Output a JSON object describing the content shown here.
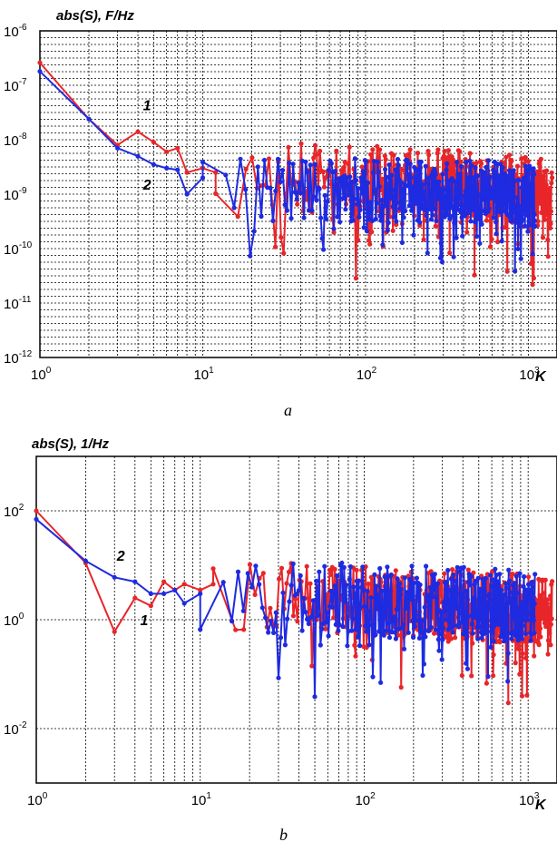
{
  "chart_data": [
    {
      "type": "line",
      "panel_label": "a",
      "ylabel": "abs(S), F/Hz",
      "xlabel": "K",
      "xscale": "log",
      "yscale": "log",
      "xlim": [
        1,
        1500
      ],
      "ylim": [
        1e-12,
        1e-06
      ],
      "grid": true,
      "x_ticks": [
        {
          "base": "10",
          "exp": "0"
        },
        {
          "base": "10",
          "exp": "1"
        },
        {
          "base": "10",
          "exp": "2"
        },
        {
          "base": "10",
          "exp": "3"
        }
      ],
      "y_ticks": [
        {
          "base": "10",
          "exp": "-6"
        },
        {
          "base": "10",
          "exp": "-7"
        },
        {
          "base": "10",
          "exp": "-8"
        },
        {
          "base": "10",
          "exp": "-9"
        },
        {
          "base": "10",
          "exp": "-10"
        },
        {
          "base": "10",
          "exp": "-11"
        },
        {
          "base": "10",
          "exp": "-12"
        }
      ],
      "annotations": [
        {
          "text": "1",
          "x": 4.3,
          "y": 3.5e-08
        },
        {
          "text": "2",
          "x": 4.3,
          "y": 1.2e-09
        }
      ],
      "series": [
        {
          "color": "#e8262a",
          "x": [
            1,
            2,
            3,
            4,
            5,
            6,
            7,
            8,
            10,
            12
          ],
          "y": [
            2.6e-07,
            2.4e-08,
            8e-09,
            1.4e-08,
            9e-09,
            6e-09,
            7e-09,
            2.5e-09,
            3e-09,
            2.5e-09
          ],
          "noise": {
            "x_start": 12,
            "x_end": 1400,
            "n": 420,
            "log_center_start": -8.7,
            "log_center_end": -9.0,
            "log_spread": 1.3,
            "seed": 11
          }
        },
        {
          "color": "#1f2be0",
          "x": [
            1,
            2,
            3,
            4,
            5,
            6,
            7,
            8,
            10
          ],
          "y": [
            1.8e-07,
            2.4e-08,
            7e-09,
            5e-09,
            3.5e-09,
            3e-09,
            2.8e-09,
            1e-09,
            2e-09
          ],
          "noise": {
            "x_start": 10,
            "x_end": 1100,
            "n": 380,
            "log_center_start": -8.9,
            "log_center_end": -9.0,
            "log_spread": 1.2,
            "seed": 29
          }
        }
      ]
    },
    {
      "type": "line",
      "panel_label": "b",
      "ylabel": "abs(S), 1/Hz",
      "xlabel": "K",
      "xscale": "log",
      "yscale": "log",
      "xlim": [
        1,
        1500
      ],
      "ylim": [
        0.001,
        1000
      ],
      "grid": true,
      "x_ticks": [
        {
          "base": "10",
          "exp": "0"
        },
        {
          "base": "10",
          "exp": "1"
        },
        {
          "base": "10",
          "exp": "2"
        },
        {
          "base": "10",
          "exp": "3"
        }
      ],
      "y_ticks": [
        {
          "base": "10",
          "exp": "2"
        },
        {
          "base": "10",
          "exp": "0"
        },
        {
          "base": "10",
          "exp": "-2"
        }
      ],
      "annotations": [
        {
          "text": "2",
          "x": 3.1,
          "y": 12
        },
        {
          "text": "1",
          "x": 4.3,
          "y": 0.8
        }
      ],
      "series": [
        {
          "color": "#e8262a",
          "x": [
            1,
            2,
            3,
            4,
            5,
            6,
            7,
            8,
            10,
            12
          ],
          "y": [
            100,
            11,
            0.6,
            2.5,
            1.8,
            5,
            3.5,
            4.5,
            3.5,
            4.5
          ],
          "noise": {
            "x_start": 12,
            "x_end": 1400,
            "n": 420,
            "log_center_start": 0.4,
            "log_center_end": 0.15,
            "log_spread": 1.3,
            "seed": 7
          }
        },
        {
          "color": "#1f2be0",
          "x": [
            1,
            2,
            3,
            4,
            5,
            6,
            7,
            8,
            10
          ],
          "y": [
            70,
            12,
            6,
            5,
            3,
            3,
            3.5,
            2,
            3
          ],
          "noise": {
            "x_start": 10,
            "x_end": 1100,
            "n": 380,
            "log_center_start": 0.4,
            "log_center_end": 0.2,
            "log_spread": 1.4,
            "seed": 53
          }
        }
      ]
    }
  ]
}
